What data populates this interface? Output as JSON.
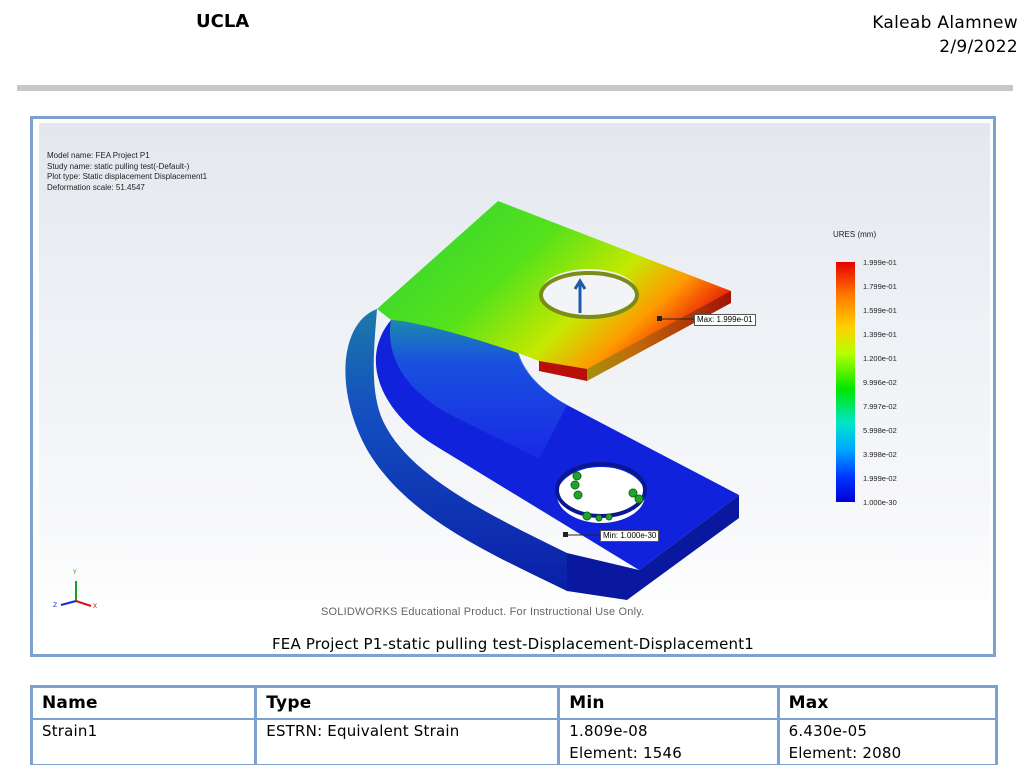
{
  "header": {
    "org": "UCLA",
    "author": "Kaleab Alamnew",
    "date": "2/9/2022"
  },
  "figure": {
    "info_lines": [
      "Model name: FEA Project P1",
      "Study name: static pulling test(-Default-)",
      "Plot type: Static displacement Displacement1",
      "Deformation scale: 51.4547"
    ],
    "max_label": "Max: 1.999e-01",
    "min_label": "Min: 1.000e-30",
    "watermark": "SOLIDWORKS Educational Product. For Instructional Use Only.",
    "caption": "FEA Project P1-static pulling test-Displacement-Displacement1",
    "legend": {
      "title": "URES (mm)",
      "ticks": [
        "1.999e-01",
        "1.799e-01",
        "1.599e-01",
        "1.399e-01",
        "1.200e-01",
        "9.996e-02",
        "7.997e-02",
        "5.998e-02",
        "3.998e-02",
        "1.999e-02",
        "1.000e-30"
      ]
    },
    "triad": {
      "x": "X",
      "y": "Y",
      "z": "Z"
    }
  },
  "table": {
    "headers": [
      "Name",
      "Type",
      "Min",
      "Max"
    ],
    "row": {
      "name": "Strain1",
      "type": "ESTRN: Equivalent Strain",
      "min": "1.809e-08",
      "min_element": "Element: 1546",
      "max": "6.430e-05",
      "max_element": "Element: 2080"
    }
  }
}
